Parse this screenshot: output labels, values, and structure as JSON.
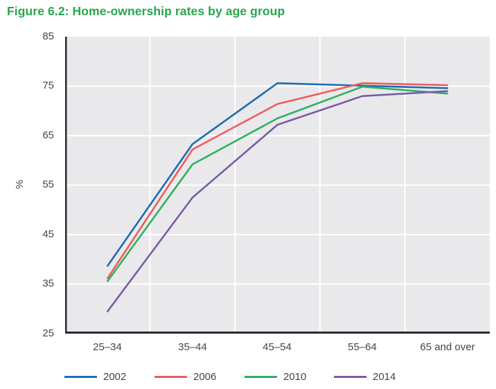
{
  "title": "Figure 6.2: Home-ownership rates by age group",
  "chart_data": {
    "type": "line",
    "categories": [
      "25–34",
      "35–44",
      "45–54",
      "55–64",
      "65 and over"
    ],
    "series": [
      {
        "name": "2002",
        "color": "#1e6bb1",
        "values": [
          38.7,
          63.3,
          75.6,
          75.1,
          74.6
        ]
      },
      {
        "name": "2006",
        "color": "#ee5c5c",
        "values": [
          36.2,
          62.2,
          71.4,
          75.6,
          75.2
        ]
      },
      {
        "name": "2010",
        "color": "#2eb163",
        "values": [
          35.6,
          59.2,
          68.5,
          74.9,
          73.5
        ]
      },
      {
        "name": "2014",
        "color": "#7a5ca6",
        "values": [
          29.5,
          52.5,
          67.2,
          73.0,
          74.0
        ]
      }
    ],
    "xlabel": "",
    "ylabel": "%",
    "ylim": [
      25,
      85
    ],
    "yticks": [
      85,
      75,
      65,
      55,
      45,
      35,
      25
    ],
    "grid": true,
    "legend_position": "bottom"
  },
  "colors": {
    "title_green": "#27a74d",
    "plot_background": "#e9e9eb",
    "gridline": "#ffffff",
    "axis": "#28282e",
    "tick_text": "#46464c"
  }
}
